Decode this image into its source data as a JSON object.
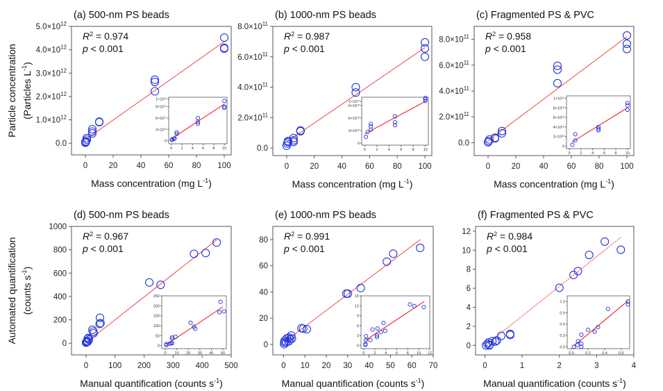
{
  "chart_data": [
    {
      "id": "a",
      "type": "scatter",
      "title": "(a) 500-nm PS beads",
      "xlabel": "Mass concentration (mg L⁻¹)",
      "ylabel": [
        "Particle concentration",
        "(Particles L⁻¹)"
      ],
      "xlim": [
        -10,
        105
      ],
      "ylim": [
        -500000000000.0,
        5000000000000.0
      ],
      "xticks": [
        0,
        20,
        40,
        60,
        80,
        100
      ],
      "xtick_labels": [
        "0",
        "20",
        "40",
        "60",
        "80",
        "100"
      ],
      "yticks": [
        0,
        1000000000000.0,
        2000000000000.0,
        3000000000000.0,
        4000000000000.0,
        5000000000000.0
      ],
      "ytick_labels": [
        "0.0",
        "1.0×10¹²",
        "2.0×10¹²",
        "3.0×10¹²",
        "4.0×10¹²",
        "5.0×10¹²"
      ],
      "r2": "0.974",
      "p": "< 0.001",
      "x": [
        0,
        0,
        0.5,
        1,
        1,
        5,
        5,
        5,
        10,
        10,
        50,
        50,
        50,
        100,
        100,
        100
      ],
      "y": [
        20000000000.0,
        50000000000.0,
        80000000000.0,
        150000000000.0,
        220000000000.0,
        420000000000.0,
        500000000000.0,
        600000000000.0,
        900000000000.0,
        920000000000.0,
        2220000000000.0,
        2620000000000.0,
        2720000000000.0,
        4050000000000.0,
        4080000000000.0,
        4520000000000.0
      ],
      "fit": {
        "x": [
          0,
          100
        ],
        "y": [
          150000000000.0,
          4350000000000.0
        ]
      },
      "inset": {
        "xlim": [
          -0.5,
          10.5
        ],
        "ylim": [
          -80000000000.0,
          1150000000000.0
        ],
        "xticks": [
          0,
          2,
          4,
          6,
          8,
          10
        ],
        "xtick_labels": [
          "0",
          "2",
          "4",
          "6",
          "8",
          "10"
        ],
        "yticks": [
          0,
          300000000000.0,
          600000000000.0,
          900000000000.0,
          1100000000000.0
        ],
        "ytick_labels": [
          "0",
          "3×10¹¹",
          "6×10¹¹",
          "9×10¹¹",
          "1×10¹²"
        ],
        "x": [
          0.1,
          0.2,
          0.5,
          0.6,
          1,
          1,
          5,
          5,
          5,
          10,
          10,
          10
        ],
        "y": [
          20000000000.0,
          40000000000.0,
          50000000000.0,
          60000000000.0,
          180000000000.0,
          220000000000.0,
          450000000000.0,
          500000000000.0,
          600000000000.0,
          870000000000.0,
          900000000000.0,
          1050000000000.0
        ],
        "fit": {
          "x": [
            0,
            10
          ],
          "y": [
            50000000000.0,
            970000000000.0
          ]
        }
      }
    },
    {
      "id": "b",
      "type": "scatter",
      "title": "(b) 1000-nm PS beads",
      "xlabel": "Mass concentration (mg L⁻¹)",
      "ylabel": [],
      "xlim": [
        -10,
        105
      ],
      "ylim": [
        -50000000000.0,
        800000000000.0
      ],
      "xticks": [
        0,
        20,
        40,
        60,
        80,
        100
      ],
      "xtick_labels": [
        "0",
        "20",
        "40",
        "60",
        "80",
        "100"
      ],
      "yticks": [
        0,
        200000000000.0,
        400000000000.0,
        600000000000.0,
        800000000000.0
      ],
      "ytick_labels": [
        "0.0",
        "2.0×10¹¹",
        "4.0×10¹¹",
        "6.0×10¹¹",
        "8.0×10¹¹"
      ],
      "r2": "0.987",
      "p": "< 0.001",
      "x": [
        0,
        0.5,
        1,
        1,
        5,
        5,
        5,
        10,
        10,
        10,
        50,
        50,
        100,
        100,
        100
      ],
      "y": [
        15000000000.0,
        30000000000.0,
        40000000000.0,
        45000000000.0,
        40000000000.0,
        50000000000.0,
        65000000000.0,
        110000000000.0,
        112000000000.0,
        115000000000.0,
        365000000000.0,
        400000000000.0,
        600000000000.0,
        655000000000.0,
        695000000000.0
      ],
      "fit": {
        "x": [
          0,
          100
        ],
        "y": [
          40000000000.0,
          660000000000.0
        ]
      },
      "inset": {
        "xlim": [
          -0.5,
          10.5
        ],
        "ylim": [
          -5000000000.0,
          110000000000.0
        ],
        "xticks": [
          0,
          2,
          4,
          6,
          8,
          10
        ],
        "xtick_labels": [
          "0",
          "2",
          "4",
          "6",
          "8",
          "10"
        ],
        "yticks": [
          0,
          30000000000.0,
          60000000000.0,
          90000000000.0,
          100000000000.0
        ],
        "ytick_labels": [
          "0",
          "3×10¹⁰",
          "6×10¹⁰",
          "9×10¹⁰",
          "1×10¹¹"
        ],
        "x": [
          0.2,
          0.5,
          1,
          1,
          1,
          5,
          5,
          5,
          10,
          10,
          10
        ],
        "y": [
          15000000000.0,
          27000000000.0,
          32000000000.0,
          40000000000.0,
          46000000000.0,
          43000000000.0,
          50000000000.0,
          64000000000.0,
          101000000000.0,
          105000000000.0,
          108000000000.0
        ],
        "fit": {
          "x": [
            0,
            10
          ],
          "y": [
            22000000000.0,
            100000000000.0
          ]
        }
      }
    },
    {
      "id": "c",
      "type": "scatter",
      "title": "(c) Fragmented PS & PVC",
      "xlabel": "Mass concentration (mg L⁻¹)",
      "ylabel": [],
      "xlim": [
        -10,
        105
      ],
      "ylim": [
        -100000000000.0,
        900000000000.0
      ],
      "xticks": [
        0,
        20,
        40,
        60,
        80,
        100
      ],
      "xtick_labels": [
        "0",
        "20",
        "40",
        "60",
        "80",
        "100"
      ],
      "yticks": [
        0,
        200000000000.0,
        400000000000.0,
        600000000000.0,
        800000000000.0
      ],
      "ytick_labels": [
        "0.0",
        "2.0×10¹¹",
        "4.0×10¹¹",
        "6.0×10¹¹",
        "8.0×10¹¹"
      ],
      "r2": "0.958",
      "p": "< 0.001",
      "x": [
        0,
        0.5,
        1,
        5,
        5,
        10,
        10,
        50,
        50,
        50,
        100,
        100,
        100
      ],
      "y": [
        3000000000.0,
        12000000000.0,
        25000000000.0,
        33000000000.0,
        38000000000.0,
        72000000000.0,
        90000000000.0,
        460000000000.0,
        565000000000.0,
        595000000000.0,
        725000000000.0,
        765000000000.0,
        830000000000.0
      ],
      "fit": {
        "x": [
          0,
          100
        ],
        "y": [
          15000000000.0,
          820000000000.0
        ]
      },
      "inset": {
        "xlim": [
          -0.5,
          10.5
        ],
        "ylim": [
          -5000000000.0,
          105000000000.0
        ],
        "xticks": [
          0,
          2,
          4,
          6,
          8,
          10
        ],
        "xtick_labels": [
          "0",
          "2",
          "4",
          "6",
          "8",
          "10"
        ],
        "yticks": [
          0,
          20000000000.0,
          40000000000.0,
          60000000000.0,
          80000000000.0,
          100000000000.0
        ],
        "ytick_labels": [
          "0",
          "2×10¹⁰",
          "4×10¹⁰",
          "6×10¹⁰",
          "8×10¹⁰",
          "1×10¹¹"
        ],
        "x": [
          0.5,
          1,
          1,
          5,
          5,
          5,
          10,
          10,
          10
        ],
        "y": [
          3000000000.0,
          12000000000.0,
          25000000000.0,
          33000000000.0,
          36000000000.0,
          40000000000.0,
          76000000000.0,
          85000000000.0,
          90000000000.0
        ],
        "fit": {
          "x": [
            0.5,
            10
          ],
          "y": [
            9000000000.0,
            80000000000.0
          ]
        }
      }
    },
    {
      "id": "d",
      "type": "scatter",
      "title": "(d) 500-nm PS beads",
      "xlabel": "Manual quantification (counts s⁻¹)",
      "ylabel": [
        "Automated quantification",
        "(counts s⁻¹)"
      ],
      "xlim": [
        -50,
        500
      ],
      "ylim": [
        -100,
        1000
      ],
      "xticks": [
        0,
        100,
        200,
        300,
        400,
        500
      ],
      "xtick_labels": [
        "0",
        "100",
        "200",
        "300",
        "400",
        "500"
      ],
      "yticks": [
        0,
        200,
        400,
        600,
        800,
        1000
      ],
      "ytick_labels": [
        "0",
        "200",
        "400",
        "600",
        "800",
        "1000"
      ],
      "r2": "0.967",
      "p": "< 0.001",
      "x": [
        0,
        2,
        4,
        5,
        6,
        8,
        10,
        22,
        25,
        26,
        47,
        48,
        50,
        218,
        257,
        372,
        412,
        450
      ],
      "y": [
        5,
        10,
        20,
        12,
        38,
        45,
        30,
        115,
        100,
        85,
        165,
        218,
        172,
        520,
        500,
        765,
        772,
        862
      ],
      "fit": {
        "x": [
          0,
          450
        ],
        "y": [
          5,
          885
        ]
      },
      "inset": {
        "xlim": [
          -3,
          53
        ],
        "ylim": [
          -15,
          250
        ],
        "xticks": [
          0,
          10,
          20,
          30,
          40,
          50
        ],
        "xtick_labels": [
          "0",
          "10",
          "20",
          "30",
          "40",
          "50"
        ],
        "yticks": [
          0,
          50,
          100,
          150,
          200,
          250
        ],
        "ytick_labels": [
          "0",
          "50",
          "100",
          "150",
          "200",
          "250"
        ],
        "x": [
          1,
          1,
          4,
          5,
          6,
          6,
          6,
          9,
          22,
          25,
          26,
          47,
          48,
          51
        ],
        "y": [
          3,
          8,
          10,
          12,
          35,
          42,
          12,
          45,
          115,
          95,
          85,
          168,
          220,
          172
        ],
        "fit": {
          "x": [
            1,
            50
          ],
          "y": [
            5,
            195
          ]
        }
      }
    },
    {
      "id": "e",
      "type": "scatter",
      "title": "(e) 1000-nm PS beads",
      "xlabel": "Manual quantification (counts s⁻¹)",
      "ylabel": [],
      "xlim": [
        -5,
        70
      ],
      "ylim": [
        -8,
        90
      ],
      "xticks": [
        0,
        10,
        20,
        30,
        40,
        50,
        60,
        70
      ],
      "xtick_labels": [
        "0",
        "10",
        "20",
        "30",
        "40",
        "50",
        "60",
        "70"
      ],
      "yticks": [
        0,
        20,
        40,
        60,
        80
      ],
      "ytick_labels": [
        "0",
        "20",
        "40",
        "60",
        "80"
      ],
      "r2": "0.991",
      "p": "< 0.001",
      "x": [
        0.3,
        0.4,
        0.5,
        1.2,
        1.6,
        2.4,
        2.5,
        3.1,
        3.6,
        3.9,
        8.4,
        9.2,
        10.9,
        29.4,
        30.1,
        36.1,
        48.3,
        51.3,
        63.9
      ],
      "y": [
        0.2,
        1.5,
        2.8,
        1.5,
        4.7,
        2.3,
        5.2,
        4.0,
        6.8,
        4.4,
        12.4,
        12.0,
        11.6,
        38.7,
        38.7,
        43.0,
        63.1,
        69.2,
        73.6
      ],
      "fit": {
        "x": [
          0,
          64
        ],
        "y": [
          1.3,
          80
        ]
      },
      "inset": {
        "xlim": [
          -0.5,
          12
        ],
        "ylim": [
          -1,
          15
        ],
        "xticks": [
          0,
          2,
          4,
          6,
          8,
          10,
          12
        ],
        "xtick_labels": [
          "0",
          "2",
          "4",
          "6",
          "8",
          "10",
          "12"
        ],
        "yticks": [
          0,
          3,
          6,
          9,
          12,
          15
        ],
        "ytick_labels": [
          "0",
          "3",
          "6",
          "9",
          "12",
          "15"
        ],
        "x": [
          0.3,
          0.3,
          0.4,
          0.4,
          1.2,
          1.6,
          2.4,
          2.4,
          2.5,
          3.1,
          3.6,
          3.9,
          8.4,
          9.2,
          10.9
        ],
        "y": [
          0.1,
          0.4,
          1.6,
          2.8,
          1.6,
          4.8,
          2.5,
          3.0,
          5.1,
          4.0,
          6.8,
          4.4,
          12.4,
          11.9,
          11.6
        ],
        "fit": {
          "x": [
            0.3,
            11
          ],
          "y": [
            1.5,
            13.3
          ]
        }
      }
    },
    {
      "id": "f",
      "type": "scatter",
      "title": "(f) Fragmented PS & PVC",
      "xlabel": "Manual quantification (counts s⁻¹)",
      "ylabel": [],
      "xlim": [
        -0.25,
        4
      ],
      "ylim": [
        -1,
        12.5
      ],
      "xticks": [
        0,
        1,
        2,
        3,
        4
      ],
      "xtick_labels": [
        "0",
        "1",
        "2",
        "3",
        "4"
      ],
      "yticks": [
        0,
        2,
        4,
        6,
        8,
        10,
        12
      ],
      "ytick_labels": [
        "0",
        "2",
        "4",
        "6",
        "8",
        "10",
        "12"
      ],
      "r2": "0.984",
      "p": "< 0.001",
      "x": [
        0.03,
        0.07,
        0.1,
        0.12,
        0.12,
        0.2,
        0.28,
        0.32,
        0.44,
        0.68,
        0.68,
        2.0,
        2.38,
        2.5,
        2.8,
        3.22,
        3.65
      ],
      "y": [
        0.0,
        0.15,
        0.3,
        0.05,
        0.0,
        0.45,
        0.4,
        0.52,
        1.0,
        1.1,
        1.2,
        6.05,
        7.4,
        7.8,
        9.5,
        10.9,
        10.05
      ],
      "fit": {
        "x": [
          0,
          3.65
        ],
        "y": [
          -0.05,
          11.35
        ]
      },
      "inset": {
        "xlim": [
          -0.05,
          0.7
        ],
        "ylim": [
          -0.05,
          1.35
        ],
        "xticks": [
          0,
          0.2,
          0.4,
          0.6
        ],
        "xtick_labels": [
          "0.0",
          "0.2",
          "0.4",
          "0.6"
        ],
        "yticks": [
          0,
          0.3,
          0.6,
          0.9,
          1.2
        ],
        "ytick_labels": [
          "0.0",
          "0.3",
          "0.6",
          "0.9",
          "1.2"
        ],
        "x": [
          0.03,
          0.07,
          0.08,
          0.12,
          0.12,
          0.12,
          0.2,
          0.28,
          0.32,
          0.44,
          0.68,
          0.68
        ],
        "y": [
          0.0,
          0.05,
          0.15,
          0.0,
          0.08,
          0.32,
          0.45,
          0.4,
          0.52,
          1.0,
          1.12,
          1.2
        ],
        "fit": {
          "x": [
            0.03,
            0.68
          ],
          "y": [
            0.02,
            1.22
          ]
        }
      }
    }
  ],
  "labels": {
    "r2_prefix": "R",
    "r2_sup": "2",
    "r2_eq": " = ",
    "p_prefix": "p"
  }
}
